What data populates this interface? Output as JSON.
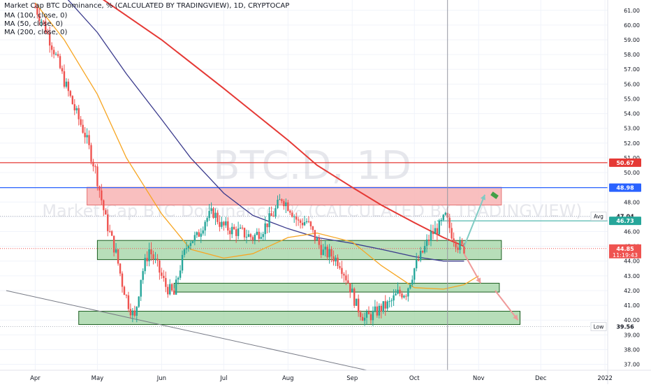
{
  "legend": {
    "title": "Market Cap BTC Dominance, % (CALCULATED BY TRADINGVIEW), 1D, CRYPTOCAP",
    "ma": [
      "MA (100, close, 0)",
      "MA (50, close, 0)",
      "MA (200, close, 0)"
    ]
  },
  "watermark": {
    "symbol": "BTC.D, 1D",
    "description": "Market Cap BTC Dominance, % (CALCULATED BY TRADINGVIEW)"
  },
  "colors": {
    "candle_up": "#26a69a",
    "candle_down": "#ef5350",
    "ma50": "#f7a623",
    "ma100": "#3a3a8c",
    "ma200": "#e53935",
    "resistance_line": "#e53935",
    "support_line": "#2962ff",
    "zone_red": "#f8b4b4",
    "zone_green": "#a5d6a7",
    "arrow_up": "#80cbc4",
    "arrow_down": "#ef9a9a",
    "label_blue": "#2962ff",
    "label_red": "#e53935",
    "label_green": "#26a69a"
  },
  "chart_data": {
    "type": "candlestick",
    "title": "Market Cap BTC Dominance, % (CALCULATED BY TRADINGVIEW), 1D, CRYPTOCAP",
    "x_ticks": [
      "Apr",
      "May",
      "Jun",
      "Jul",
      "Aug",
      "Sep",
      "Oct",
      "Nov",
      "Dec",
      "2022"
    ],
    "y_ticks": [
      37,
      38,
      39,
      40,
      41,
      42,
      43,
      44,
      45,
      46,
      47,
      48,
      49,
      50,
      51,
      52,
      53,
      54,
      55,
      56,
      57,
      58,
      59,
      60,
      61
    ],
    "ylim": [
      36.6,
      61.7
    ],
    "close_path": [
      {
        "date": "2021-04-01",
        "value": 61.2
      },
      {
        "date": "2021-04-05",
        "value": 60.1
      },
      {
        "date": "2021-04-10",
        "value": 58.3
      },
      {
        "date": "2021-04-15",
        "value": 56.2
      },
      {
        "date": "2021-04-20",
        "value": 54.3
      },
      {
        "date": "2021-04-25",
        "value": 52.6
      },
      {
        "date": "2021-04-30",
        "value": 50.2
      },
      {
        "date": "2021-05-05",
        "value": 46.8
      },
      {
        "date": "2021-05-10",
        "value": 44.5
      },
      {
        "date": "2021-05-13",
        "value": 42.5
      },
      {
        "date": "2021-05-16",
        "value": 41.1
      },
      {
        "date": "2021-05-19",
        "value": 40.1
      },
      {
        "date": "2021-05-22",
        "value": 42.9
      },
      {
        "date": "2021-05-26",
        "value": 44.8
      },
      {
        "date": "2021-05-30",
        "value": 43.6
      },
      {
        "date": "2021-06-03",
        "value": 42.3
      },
      {
        "date": "2021-06-07",
        "value": 41.7
      },
      {
        "date": "2021-06-10",
        "value": 43.6
      },
      {
        "date": "2021-06-14",
        "value": 45.4
      },
      {
        "date": "2021-06-18",
        "value": 45.6
      },
      {
        "date": "2021-06-22",
        "value": 46.8
      },
      {
        "date": "2021-06-26",
        "value": 47.3
      },
      {
        "date": "2021-06-30",
        "value": 46.4
      },
      {
        "date": "2021-07-05",
        "value": 46.1
      },
      {
        "date": "2021-07-10",
        "value": 45.9
      },
      {
        "date": "2021-07-15",
        "value": 45.6
      },
      {
        "date": "2021-07-20",
        "value": 46.2
      },
      {
        "date": "2021-07-25",
        "value": 47.2
      },
      {
        "date": "2021-07-29",
        "value": 48.3
      },
      {
        "date": "2021-08-02",
        "value": 47.6
      },
      {
        "date": "2021-08-06",
        "value": 46.6
      },
      {
        "date": "2021-08-10",
        "value": 46.7
      },
      {
        "date": "2021-08-14",
        "value": 45.6
      },
      {
        "date": "2021-08-18",
        "value": 44.6
      },
      {
        "date": "2021-08-22",
        "value": 44.4
      },
      {
        "date": "2021-08-26",
        "value": 43.9
      },
      {
        "date": "2021-08-30",
        "value": 42.6
      },
      {
        "date": "2021-09-03",
        "value": 41.0
      },
      {
        "date": "2021-09-07",
        "value": 40.1
      },
      {
        "date": "2021-09-11",
        "value": 40.4
      },
      {
        "date": "2021-09-15",
        "value": 40.8
      },
      {
        "date": "2021-09-19",
        "value": 41.1
      },
      {
        "date": "2021-09-23",
        "value": 41.8
      },
      {
        "date": "2021-09-27",
        "value": 41.9
      },
      {
        "date": "2021-10-01",
        "value": 43.5
      },
      {
        "date": "2021-10-05",
        "value": 44.6
      },
      {
        "date": "2021-10-09",
        "value": 45.8
      },
      {
        "date": "2021-10-13",
        "value": 46.3
      },
      {
        "date": "2021-10-16",
        "value": 47.0
      },
      {
        "date": "2021-10-19",
        "value": 45.9
      },
      {
        "date": "2021-10-22",
        "value": 45.1
      },
      {
        "date": "2021-10-25",
        "value": 44.85
      }
    ],
    "ma50": [
      {
        "date": "2021-04-01",
        "value": 61.5
      },
      {
        "date": "2021-04-15",
        "value": 59.0
      },
      {
        "date": "2021-05-01",
        "value": 55.3
      },
      {
        "date": "2021-05-15",
        "value": 51.0
      },
      {
        "date": "2021-06-01",
        "value": 47.2
      },
      {
        "date": "2021-06-15",
        "value": 44.8
      },
      {
        "date": "2021-07-01",
        "value": 44.2
      },
      {
        "date": "2021-07-15",
        "value": 44.5
      },
      {
        "date": "2021-08-01",
        "value": 45.6
      },
      {
        "date": "2021-08-15",
        "value": 45.9
      },
      {
        "date": "2021-09-01",
        "value": 45.3
      },
      {
        "date": "2021-09-15",
        "value": 43.7
      },
      {
        "date": "2021-10-01",
        "value": 42.2
      },
      {
        "date": "2021-10-15",
        "value": 42.1
      },
      {
        "date": "2021-10-25",
        "value": 42.4
      },
      {
        "date": "2021-11-01",
        "value": 43.0
      }
    ],
    "ma100": [
      {
        "date": "2021-04-01",
        "value": 63.0
      },
      {
        "date": "2021-04-15",
        "value": 62.0
      },
      {
        "date": "2021-05-01",
        "value": 59.5
      },
      {
        "date": "2021-05-15",
        "value": 56.7
      },
      {
        "date": "2021-06-01",
        "value": 53.6
      },
      {
        "date": "2021-06-15",
        "value": 51.0
      },
      {
        "date": "2021-07-01",
        "value": 48.6
      },
      {
        "date": "2021-07-15",
        "value": 47.1
      },
      {
        "date": "2021-08-01",
        "value": 46.2
      },
      {
        "date": "2021-08-15",
        "value": 45.6
      },
      {
        "date": "2021-09-01",
        "value": 45.2
      },
      {
        "date": "2021-09-15",
        "value": 44.8
      },
      {
        "date": "2021-10-01",
        "value": 44.3
      },
      {
        "date": "2021-10-15",
        "value": 44.0
      },
      {
        "date": "2021-10-25",
        "value": 44.0
      }
    ],
    "ma200": [
      {
        "date": "2021-04-01",
        "value": 64.0
      },
      {
        "date": "2021-05-01",
        "value": 62.0
      },
      {
        "date": "2021-06-01",
        "value": 59.0
      },
      {
        "date": "2021-07-01",
        "value": 55.7
      },
      {
        "date": "2021-08-01",
        "value": 52.2
      },
      {
        "date": "2021-08-15",
        "value": 50.5
      },
      {
        "date": "2021-09-01",
        "value": 49.0
      },
      {
        "date": "2021-09-15",
        "value": 47.8
      },
      {
        "date": "2021-10-01",
        "value": 46.6
      },
      {
        "date": "2021-10-15",
        "value": 45.6
      },
      {
        "date": "2021-10-25",
        "value": 45.0
      }
    ],
    "levels": [
      {
        "value": 50.67,
        "label": "50.67",
        "color": "#e53935"
      },
      {
        "value": 48.98,
        "label": "48.98",
        "color": "#2962ff"
      }
    ],
    "zones": [
      {
        "kind": "resistance",
        "x1": "2021-04-26",
        "x2": "2021-11-12",
        "y1": 47.8,
        "y2": 49.0
      },
      {
        "kind": "support",
        "x1": "2021-05-01",
        "x2": "2021-11-12",
        "y1": 44.1,
        "y2": 45.4
      },
      {
        "kind": "support",
        "x1": "2021-06-07",
        "x2": "2021-11-11",
        "y1": 41.9,
        "y2": 42.5
      },
      {
        "kind": "support",
        "x1": "2021-04-22",
        "x2": "2021-11-21",
        "y1": 39.7,
        "y2": 40.6
      }
    ],
    "trendline": {
      "x1": "2021-03-18",
      "y1": 42.0,
      "x2": "2021-09-08",
      "y2": 36.6
    },
    "cursor_date": "2021-10-17",
    "price_labels": {
      "current": "44.85",
      "countdown": "11:19:43",
      "avg_tag": "Avg",
      "avg_value": "47.04",
      "high_value": "46.73",
      "low_tag": "Low",
      "low_value": "39.56"
    }
  }
}
